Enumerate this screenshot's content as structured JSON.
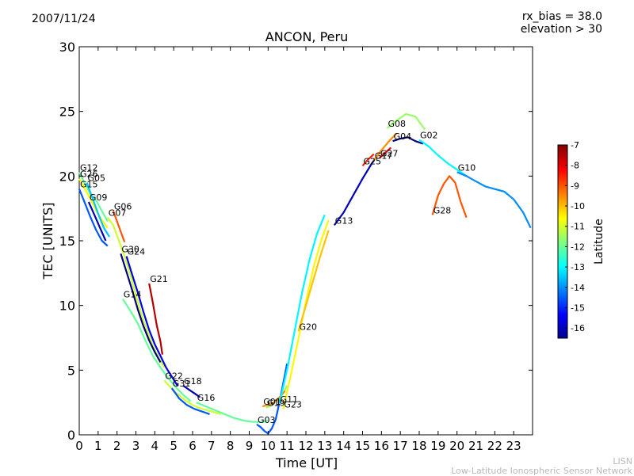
{
  "header": {
    "date": "2007/11/24",
    "rx_bias": "rx_bias = 38.0",
    "elevation": "elevation > 30"
  },
  "credit": {
    "line1": "LISN",
    "line2": "Low-Latitude Ionospheric Sensor Network"
  },
  "chart_data": {
    "type": "line",
    "title": "ANCON, Peru",
    "xlabel": "Time [UT]",
    "ylabel": "TEC [UNITS]",
    "xlim": [
      0,
      24
    ],
    "ylim": [
      0,
      30
    ],
    "xticks": [
      0,
      1,
      2,
      3,
      4,
      5,
      6,
      7,
      8,
      9,
      10,
      11,
      12,
      13,
      14,
      15,
      16,
      17,
      18,
      19,
      20,
      21,
      22,
      23
    ],
    "yticks": [
      0,
      5,
      10,
      15,
      20,
      25,
      30
    ],
    "grid": false,
    "colorbar": {
      "label": "Latitude",
      "min": -16.5,
      "max": -7,
      "ticks": [
        -7,
        -8,
        -9,
        -10,
        -11,
        -12,
        -13,
        -14,
        -15,
        -16
      ]
    },
    "series": [
      {
        "name": "G12",
        "lat": -12.0,
        "x": [
          0.0,
          0.3,
          0.6,
          0.9,
          1.2,
          1.5
        ],
        "y": [
          20.3,
          19.4,
          18.6,
          18.1,
          17.3,
          16.5
        ]
      },
      {
        "name": "G26",
        "lat": -10.5,
        "x": [
          0.0,
          0.3,
          0.6,
          0.9,
          1.2,
          1.5
        ],
        "y": [
          19.8,
          19.0,
          18.2,
          17.3,
          16.6,
          16.0
        ]
      },
      {
        "name": "G05",
        "lat": -13.5,
        "x": [
          0.4,
          0.7,
          1.0,
          1.3,
          1.6
        ],
        "y": [
          19.5,
          18.3,
          17.1,
          16.0,
          15.3
        ]
      },
      {
        "name": "G15",
        "lat": -14.5,
        "x": [
          0.0,
          0.3,
          0.6,
          0.9,
          1.2,
          1.5
        ],
        "y": [
          19.0,
          17.9,
          16.8,
          15.8,
          15.0,
          14.6
        ]
      },
      {
        "name": "G09",
        "lat": -16.0,
        "x": [
          0.5,
          0.8,
          1.1,
          1.4
        ],
        "y": [
          18.0,
          17.0,
          16.0,
          15.0
        ]
      },
      {
        "name": "G06",
        "lat": -9.0,
        "x": [
          1.8,
          2.0,
          2.2,
          2.4
        ],
        "y": [
          17.3,
          16.5,
          15.7,
          14.9
        ]
      },
      {
        "name": "G07",
        "lat": -11.0,
        "x": [
          1.5,
          1.8,
          2.1,
          2.4,
          2.7,
          3.0,
          3.3,
          3.6,
          3.9,
          4.2,
          4.5
        ],
        "y": [
          16.8,
          16.2,
          15.0,
          13.8,
          12.4,
          10.8,
          9.3,
          8.0,
          6.9,
          6.0,
          5.2
        ]
      },
      {
        "name": "G24",
        "lat": -15.5,
        "x": [
          2.5,
          2.8,
          3.1,
          3.4,
          3.7,
          4.0,
          4.3,
          4.6,
          4.9,
          5.2
        ],
        "y": [
          13.8,
          12.4,
          11.0,
          9.5,
          8.1,
          7.0,
          6.1,
          5.2,
          4.5,
          3.8
        ]
      },
      {
        "name": "G30",
        "lat": -16.5,
        "x": [
          2.2,
          2.5,
          2.8,
          3.1,
          3.4,
          3.7,
          4.0,
          4.3
        ],
        "y": [
          14.0,
          12.6,
          11.2,
          9.7,
          8.4,
          7.3,
          6.4,
          5.6
        ]
      },
      {
        "name": "G21",
        "lat": -7.5,
        "x": [
          3.7,
          3.9,
          4.1,
          4.3,
          4.4
        ],
        "y": [
          11.7,
          10.2,
          8.5,
          7.2,
          6.2
        ]
      },
      {
        "name": "G14",
        "lat": -12.0,
        "x": [
          2.3,
          2.7,
          3.1,
          3.5,
          3.9,
          4.3,
          4.7,
          5.1,
          5.5,
          5.9
        ],
        "y": [
          10.5,
          9.6,
          8.6,
          7.3,
          6.1,
          5.2,
          4.4,
          3.7,
          3.1,
          2.6
        ]
      },
      {
        "name": "G18",
        "lat": -16.0,
        "x": [
          5.5,
          5.8,
          6.1,
          6.4
        ],
        "y": [
          3.8,
          3.5,
          3.2,
          2.9
        ]
      },
      {
        "name": "G22",
        "lat": -11.0,
        "x": [
          4.5,
          5.0,
          5.5,
          6.0,
          6.5,
          7.0,
          7.5
        ],
        "y": [
          4.2,
          3.4,
          2.8,
          2.3,
          2.0,
          1.8,
          1.6
        ]
      },
      {
        "name": "G31",
        "lat": -14.5,
        "x": [
          4.9,
          5.3,
          5.7,
          6.1,
          6.5,
          6.9
        ],
        "y": [
          3.6,
          2.8,
          2.3,
          2.0,
          1.8,
          1.6
        ]
      },
      {
        "name": "G16",
        "lat": -12.0,
        "x": [
          6.2,
          6.7,
          7.2,
          7.7,
          8.2,
          8.7,
          9.2,
          9.7,
          10.0
        ],
        "y": [
          2.5,
          2.2,
          1.9,
          1.6,
          1.3,
          1.1,
          1.0,
          1.0,
          1.1
        ]
      },
      {
        "name": "G03",
        "lat": -14.5,
        "x": [
          9.4,
          9.6,
          9.8,
          10.0,
          10.2,
          10.4,
          10.6,
          10.8,
          11.0
        ],
        "y": [
          0.8,
          0.6,
          0.3,
          0.1,
          0.5,
          1.2,
          2.5,
          4.0,
          5.5
        ]
      },
      {
        "name": "G19",
        "lat": -11.5,
        "x": [
          9.9,
          10.2,
          10.5,
          10.8,
          11.0
        ],
        "y": [
          2.1,
          2.3,
          2.7,
          3.2,
          3.8
        ]
      },
      {
        "name": "G01",
        "lat": -9.5,
        "x": [
          9.7,
          10.0,
          10.3,
          10.6,
          10.9
        ],
        "y": [
          2.2,
          2.3,
          2.5,
          2.9,
          3.4
        ]
      },
      {
        "name": "G11",
        "lat": -13.0,
        "x": [
          10.6,
          11.0,
          11.4,
          11.8,
          12.2,
          12.6,
          13.0
        ],
        "y": [
          2.4,
          5.0,
          8.0,
          11.0,
          13.6,
          15.6,
          17.0
        ]
      },
      {
        "name": "G23",
        "lat": -10.5,
        "x": [
          10.8,
          11.2,
          11.6,
          12.0,
          12.4,
          12.8,
          13.2
        ],
        "y": [
          2.0,
          4.6,
          7.4,
          10.3,
          12.9,
          15.0,
          16.6
        ]
      },
      {
        "name": "G20",
        "lat": -10.0,
        "x": [
          11.6,
          12.0,
          12.4,
          12.8,
          13.2
        ],
        "y": [
          8.0,
          10.0,
          12.0,
          14.0,
          15.8
        ]
      },
      {
        "name": "G13",
        "lat": -16.0,
        "x": [
          13.5,
          14.0,
          14.5,
          15.0,
          15.5,
          16.0
        ],
        "y": [
          16.2,
          17.2,
          18.5,
          19.8,
          21.0,
          22.0
        ]
      },
      {
        "name": "G25",
        "lat": -8.5,
        "x": [
          15.0,
          15.3,
          15.6
        ],
        "y": [
          20.8,
          21.3,
          21.7
        ]
      },
      {
        "name": "G17",
        "lat": -9.5,
        "x": [
          15.6,
          16.0,
          16.4,
          16.8
        ],
        "y": [
          21.2,
          22.0,
          22.7,
          23.3
        ]
      },
      {
        "name": "G27",
        "lat": -8.0,
        "x": [
          15.9,
          16.2,
          16.5
        ],
        "y": [
          21.4,
          21.8,
          22.2
        ]
      },
      {
        "name": "G08",
        "lat": -11.5,
        "x": [
          16.3,
          16.8,
          17.3,
          17.8,
          18.3
        ],
        "y": [
          23.7,
          24.3,
          24.8,
          24.6,
          23.6
        ]
      },
      {
        "name": "G04",
        "lat": -16.5,
        "x": [
          16.6,
          17.0,
          17.4,
          17.8,
          18.2
        ],
        "y": [
          22.7,
          22.9,
          23.0,
          22.7,
          22.5
        ]
      },
      {
        "name": "G02",
        "lat": -13.0,
        "x": [
          18.0,
          18.5,
          19.0,
          19.5,
          20.0,
          20.5
        ],
        "y": [
          22.8,
          22.3,
          21.6,
          21.0,
          20.5,
          20.0
        ]
      },
      {
        "name": "G28",
        "lat": -9.0,
        "x": [
          18.7,
          19.0,
          19.3,
          19.6,
          19.9,
          20.2,
          20.5
        ],
        "y": [
          17.0,
          18.5,
          19.4,
          20.0,
          19.5,
          18.0,
          16.8
        ]
      },
      {
        "name": "G10",
        "lat": -14.0,
        "x": [
          20.0,
          20.5,
          21.0,
          21.5,
          22.0,
          22.5,
          23.0,
          23.5,
          23.9
        ],
        "y": [
          20.3,
          20.0,
          19.6,
          19.2,
          19.0,
          18.8,
          18.2,
          17.2,
          16.0
        ]
      }
    ]
  }
}
